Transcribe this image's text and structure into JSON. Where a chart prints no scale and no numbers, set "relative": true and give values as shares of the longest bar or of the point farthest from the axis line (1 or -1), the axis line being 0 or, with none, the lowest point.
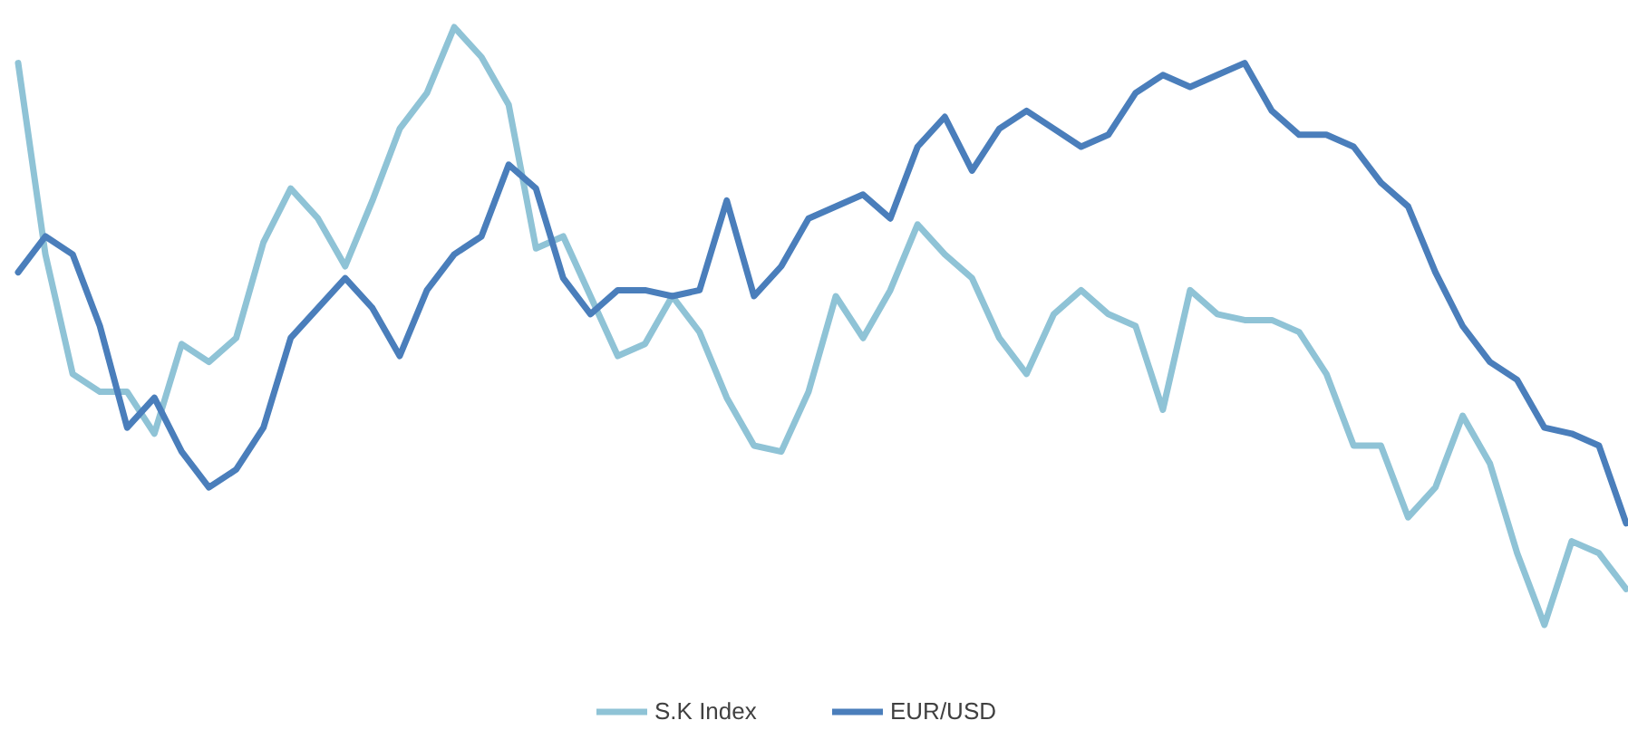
{
  "chart_data": {
    "type": "line",
    "relative": true,
    "legend": "bottom",
    "line_style": "solid",
    "categories": [
      null,
      null,
      null,
      null,
      null,
      null,
      null,
      null,
      null,
      null,
      null,
      null,
      null,
      null,
      null,
      null,
      null,
      null,
      null,
      null,
      null,
      null,
      null,
      null,
      null,
      null,
      null,
      null,
      null,
      null,
      null,
      null,
      null,
      null,
      null,
      null,
      null,
      null,
      null,
      null,
      null,
      null,
      null,
      null,
      null,
      null,
      null,
      null,
      null,
      null,
      null,
      null,
      null,
      null,
      null,
      null,
      null,
      null,
      null,
      null
    ],
    "series": [
      {
        "name": "S.K Index",
        "color": "#8fc3d6",
        "values": [
          0.94,
          0.62,
          0.42,
          0.39,
          0.39,
          0.32,
          0.47,
          0.44,
          0.48,
          0.64,
          0.73,
          0.68,
          0.6,
          0.71,
          0.83,
          0.89,
          1,
          0.95,
          0.87,
          0.63,
          0.65,
          0.55,
          0.45,
          0.47,
          0.55,
          0.49,
          0.38,
          0.3,
          0.29,
          0.39,
          0.55,
          0.48,
          0.56,
          0.67,
          0.62,
          0.58,
          0.48,
          0.42,
          0.52,
          0.56,
          0.52,
          0.5,
          0.36,
          0.56,
          0.52,
          0.51,
          0.51,
          0.49,
          0.42,
          0.3,
          0.3,
          0.18,
          0.23,
          0.35,
          0.27,
          0.12,
          0,
          0.14,
          0.12,
          0.06
        ]
      },
      {
        "name": "EUR/USD",
        "color": "#4a7ebb",
        "values": [
          0.59,
          0.65,
          0.62,
          0.5,
          0.33,
          0.38,
          0.29,
          0.23,
          0.26,
          0.33,
          0.48,
          0.53,
          0.58,
          0.53,
          0.45,
          0.56,
          0.62,
          0.65,
          0.77,
          0.73,
          0.58,
          0.52,
          0.56,
          0.56,
          0.55,
          0.56,
          0.71,
          0.55,
          0.6,
          0.68,
          0.7,
          0.72,
          0.68,
          0.8,
          0.85,
          0.76,
          0.83,
          0.86,
          0.83,
          0.8,
          0.82,
          0.89,
          0.92,
          0.9,
          0.92,
          0.94,
          0.86,
          0.82,
          0.82,
          0.8,
          0.74,
          0.7,
          0.59,
          0.5,
          0.44,
          0.41,
          0.33,
          0.32,
          0.3,
          0.17
        ]
      }
    ]
  }
}
